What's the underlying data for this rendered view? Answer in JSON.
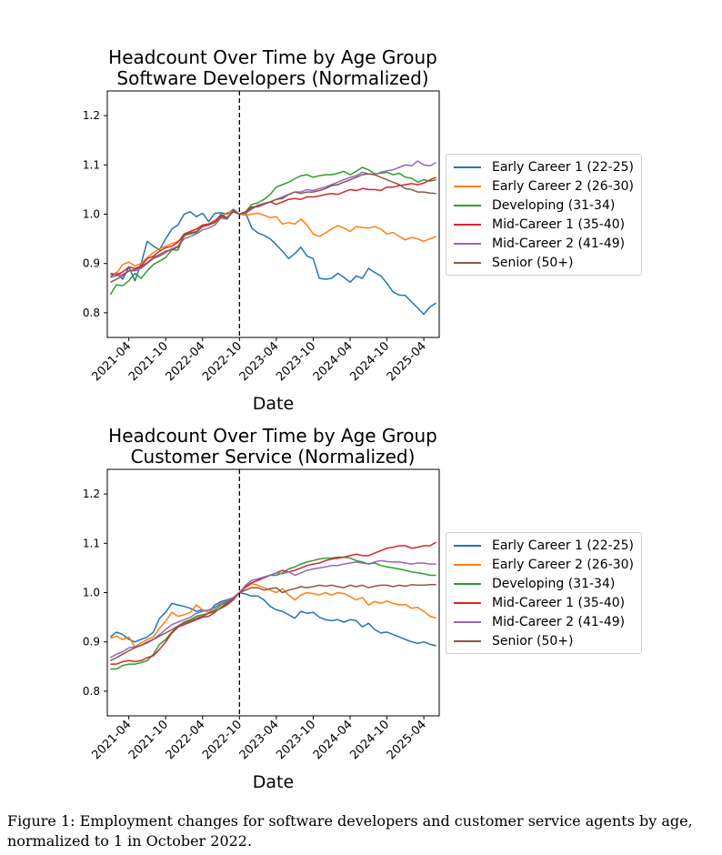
{
  "chart_data": [
    {
      "type": "line",
      "title_lines": [
        "Headcount Over Time by Age Group",
        "Software Developers (Normalized)"
      ],
      "xlabel": "Date",
      "ylabel": "",
      "ylim": [
        0.75,
        1.25
      ],
      "yticks": [
        0.8,
        0.9,
        1.0,
        1.1,
        1.2
      ],
      "xlim": [
        "2021-01",
        "2025-06"
      ],
      "xticks": [
        "2021-04",
        "2021-10",
        "2022-04",
        "2022-10",
        "2023-04",
        "2023-10",
        "2024-04",
        "2024-10",
        "2025-04"
      ],
      "reference_line": "2022-10",
      "grid": false,
      "legend_position": "right, outside",
      "x": [
        "2021-01",
        "2021-02",
        "2021-03",
        "2021-04",
        "2021-05",
        "2021-06",
        "2021-07",
        "2021-08",
        "2021-09",
        "2021-10",
        "2021-11",
        "2021-12",
        "2022-01",
        "2022-02",
        "2022-03",
        "2022-04",
        "2022-05",
        "2022-06",
        "2022-07",
        "2022-08",
        "2022-09",
        "2022-10",
        "2022-11",
        "2022-12",
        "2023-01",
        "2023-02",
        "2023-03",
        "2023-04",
        "2023-05",
        "2023-06",
        "2023-07",
        "2023-08",
        "2023-09",
        "2023-10",
        "2023-11",
        "2023-12",
        "2024-01",
        "2024-02",
        "2024-03",
        "2024-04",
        "2024-05",
        "2024-06",
        "2024-07",
        "2024-08",
        "2024-09",
        "2024-10",
        "2024-11",
        "2024-12",
        "2025-01",
        "2025-02",
        "2025-03",
        "2025-04",
        "2025-05",
        "2025-06"
      ],
      "series": [
        {
          "name": "Early Career 1 (22-25)",
          "color": "#1f77b4",
          "values": [
            0.873,
            0.882,
            0.868,
            0.893,
            0.865,
            0.9,
            0.945,
            0.935,
            0.928,
            0.95,
            0.97,
            0.978,
            1.0,
            1.005,
            0.995,
            1.002,
            0.985,
            1.002,
            1.003,
            1.0,
            1.01,
            1.0,
            1.003,
            0.972,
            0.962,
            0.957,
            0.95,
            0.938,
            0.925,
            0.91,
            0.92,
            0.933,
            0.915,
            0.91,
            0.87,
            0.868,
            0.87,
            0.88,
            0.872,
            0.862,
            0.875,
            0.87,
            0.89,
            0.882,
            0.875,
            0.86,
            0.842,
            0.836,
            0.835,
            0.822,
            0.81,
            0.797,
            0.812,
            0.82
          ]
        },
        {
          "name": "Early Career 2 (26-30)",
          "color": "#ff7f0e",
          "values": [
            0.878,
            0.88,
            0.898,
            0.903,
            0.895,
            0.9,
            0.912,
            0.922,
            0.93,
            0.935,
            0.94,
            0.945,
            0.955,
            0.965,
            0.97,
            0.975,
            0.98,
            0.988,
            0.995,
            1.003,
            1.007,
            1.0,
            0.998,
            1.0,
            1.002,
            0.998,
            0.993,
            0.995,
            0.98,
            0.983,
            0.98,
            0.99,
            0.978,
            0.96,
            0.955,
            0.962,
            0.97,
            0.977,
            0.972,
            0.965,
            0.975,
            0.973,
            0.972,
            0.975,
            0.97,
            0.96,
            0.963,
            0.955,
            0.948,
            0.953,
            0.95,
            0.945,
            0.95,
            0.955
          ]
        },
        {
          "name": "Developing (31-34)",
          "color": "#2ca02c",
          "values": [
            0.837,
            0.857,
            0.855,
            0.865,
            0.88,
            0.87,
            0.885,
            0.898,
            0.905,
            0.912,
            0.928,
            0.927,
            0.957,
            0.96,
            0.963,
            0.975,
            0.978,
            0.985,
            1.0,
            0.993,
            1.008,
            1.0,
            1.005,
            1.02,
            1.023,
            1.03,
            1.04,
            1.055,
            1.06,
            1.065,
            1.072,
            1.078,
            1.08,
            1.075,
            1.078,
            1.08,
            1.08,
            1.083,
            1.087,
            1.08,
            1.087,
            1.095,
            1.09,
            1.082,
            1.083,
            1.085,
            1.08,
            1.083,
            1.075,
            1.073,
            1.065,
            1.07,
            1.067,
            1.07
          ]
        },
        {
          "name": "Mid-Career 1 (35-40)",
          "color": "#d62728",
          "values": [
            0.88,
            0.877,
            0.883,
            0.893,
            0.89,
            0.895,
            0.91,
            0.915,
            0.925,
            0.932,
            0.935,
            0.943,
            0.96,
            0.965,
            0.97,
            0.978,
            0.98,
            0.985,
            0.998,
            0.992,
            1.005,
            1.0,
            1.005,
            1.015,
            1.015,
            1.02,
            1.025,
            1.02,
            1.025,
            1.03,
            1.032,
            1.03,
            1.035,
            1.035,
            1.037,
            1.04,
            1.042,
            1.04,
            1.045,
            1.05,
            1.048,
            1.052,
            1.05,
            1.05,
            1.048,
            1.055,
            1.055,
            1.058,
            1.06,
            1.062,
            1.06,
            1.063,
            1.07,
            1.075
          ]
        },
        {
          "name": "Mid-Career 2 (41-49)",
          "color": "#9467bd",
          "values": [
            0.872,
            0.875,
            0.878,
            0.885,
            0.885,
            0.89,
            0.9,
            0.91,
            0.915,
            0.922,
            0.93,
            0.935,
            0.95,
            0.955,
            0.96,
            0.968,
            0.972,
            0.978,
            0.992,
            0.99,
            1.008,
            1.0,
            1.003,
            1.01,
            1.018,
            1.02,
            1.025,
            1.03,
            1.035,
            1.04,
            1.045,
            1.045,
            1.05,
            1.048,
            1.052,
            1.055,
            1.06,
            1.065,
            1.07,
            1.075,
            1.078,
            1.085,
            1.082,
            1.08,
            1.085,
            1.088,
            1.09,
            1.095,
            1.1,
            1.098,
            1.108,
            1.1,
            1.098,
            1.105
          ]
        },
        {
          "name": "Senior (50+)",
          "color": "#8c564b",
          "values": [
            0.862,
            0.868,
            0.875,
            0.885,
            0.888,
            0.893,
            0.902,
            0.912,
            0.918,
            0.925,
            0.928,
            0.933,
            0.958,
            0.962,
            0.965,
            0.975,
            0.978,
            0.983,
            0.995,
            0.992,
            1.008,
            1.0,
            1.002,
            1.012,
            1.018,
            1.022,
            1.025,
            1.03,
            1.032,
            1.04,
            1.045,
            1.042,
            1.045,
            1.045,
            1.048,
            1.052,
            1.058,
            1.06,
            1.065,
            1.07,
            1.075,
            1.08,
            1.082,
            1.08,
            1.075,
            1.07,
            1.065,
            1.06,
            1.052,
            1.05,
            1.045,
            1.045,
            1.043,
            1.042
          ]
        }
      ]
    },
    {
      "type": "line",
      "title_lines": [
        "Headcount Over Time by Age Group",
        "Customer Service (Normalized)"
      ],
      "xlabel": "Date",
      "ylabel": "",
      "ylim": [
        0.75,
        1.25
      ],
      "yticks": [
        0.8,
        0.9,
        1.0,
        1.1,
        1.2
      ],
      "xlim": [
        "2021-01",
        "2025-06"
      ],
      "xticks": [
        "2021-04",
        "2021-10",
        "2022-04",
        "2022-10",
        "2023-04",
        "2023-10",
        "2024-04",
        "2024-10",
        "2025-04"
      ],
      "reference_line": "2022-10",
      "grid": false,
      "legend_position": "right, outside",
      "x": [
        "2021-01",
        "2021-02",
        "2021-03",
        "2021-04",
        "2021-05",
        "2021-06",
        "2021-07",
        "2021-08",
        "2021-09",
        "2021-10",
        "2021-11",
        "2021-12",
        "2022-01",
        "2022-02",
        "2022-03",
        "2022-04",
        "2022-05",
        "2022-06",
        "2022-07",
        "2022-08",
        "2022-09",
        "2022-10",
        "2022-11",
        "2022-12",
        "2023-01",
        "2023-02",
        "2023-03",
        "2023-04",
        "2023-05",
        "2023-06",
        "2023-07",
        "2023-08",
        "2023-09",
        "2023-10",
        "2023-11",
        "2023-12",
        "2024-01",
        "2024-02",
        "2024-03",
        "2024-04",
        "2024-05",
        "2024-06",
        "2024-07",
        "2024-08",
        "2024-09",
        "2024-10",
        "2024-11",
        "2024-12",
        "2025-01",
        "2025-02",
        "2025-03",
        "2025-04",
        "2025-05",
        "2025-06"
      ],
      "series": [
        {
          "name": "Early Career 1 (22-25)",
          "color": "#1f77b4",
          "values": [
            0.91,
            0.92,
            0.915,
            0.905,
            0.9,
            0.905,
            0.91,
            0.92,
            0.948,
            0.96,
            0.978,
            0.975,
            0.972,
            0.968,
            0.962,
            0.965,
            0.96,
            0.975,
            0.982,
            0.985,
            0.99,
            1.0,
            0.997,
            0.993,
            0.993,
            0.985,
            0.972,
            0.965,
            0.962,
            0.955,
            0.948,
            0.962,
            0.958,
            0.96,
            0.95,
            0.945,
            0.943,
            0.945,
            0.94,
            0.945,
            0.943,
            0.93,
            0.938,
            0.925,
            0.918,
            0.92,
            0.915,
            0.91,
            0.905,
            0.9,
            0.897,
            0.9,
            0.895,
            0.892
          ]
        },
        {
          "name": "Early Career 2 (26-30)",
          "color": "#ff7f0e",
          "values": [
            0.907,
            0.912,
            0.905,
            0.91,
            0.89,
            0.898,
            0.905,
            0.91,
            0.928,
            0.942,
            0.96,
            0.952,
            0.955,
            0.96,
            0.975,
            0.965,
            0.96,
            0.97,
            0.978,
            0.982,
            0.99,
            1.0,
            1.01,
            1.018,
            1.015,
            1.01,
            1.005,
            1.0,
            1.008,
            0.995,
            0.985,
            0.995,
            1.0,
            0.998,
            0.995,
            1.0,
            0.995,
            1.0,
            0.998,
            0.992,
            0.985,
            0.99,
            0.975,
            0.982,
            0.978,
            0.983,
            0.978,
            0.975,
            0.976,
            0.968,
            0.97,
            0.962,
            0.952,
            0.948
          ]
        },
        {
          "name": "Developing (31-34)",
          "color": "#2ca02c",
          "values": [
            0.845,
            0.845,
            0.852,
            0.855,
            0.855,
            0.858,
            0.862,
            0.875,
            0.895,
            0.905,
            0.92,
            0.932,
            0.94,
            0.945,
            0.952,
            0.955,
            0.958,
            0.965,
            0.975,
            0.98,
            0.99,
            1.0,
            1.012,
            1.02,
            1.025,
            1.03,
            1.035,
            1.035,
            1.04,
            1.048,
            1.052,
            1.058,
            1.062,
            1.065,
            1.068,
            1.07,
            1.07,
            1.072,
            1.072,
            1.07,
            1.065,
            1.062,
            1.058,
            1.06,
            1.055,
            1.052,
            1.05,
            1.048,
            1.045,
            1.042,
            1.04,
            1.038,
            1.035,
            1.035
          ]
        },
        {
          "name": "Mid-Career 1 (35-40)",
          "color": "#d62728",
          "values": [
            0.855,
            0.855,
            0.86,
            0.862,
            0.86,
            0.862,
            0.868,
            0.872,
            0.885,
            0.9,
            0.918,
            0.93,
            0.935,
            0.94,
            0.945,
            0.95,
            0.952,
            0.96,
            0.97,
            0.978,
            0.988,
            1.0,
            1.012,
            1.02,
            1.025,
            1.03,
            1.035,
            1.04,
            1.045,
            1.042,
            1.045,
            1.05,
            1.055,
            1.058,
            1.06,
            1.065,
            1.068,
            1.07,
            1.072,
            1.075,
            1.078,
            1.075,
            1.075,
            1.08,
            1.085,
            1.09,
            1.092,
            1.095,
            1.095,
            1.09,
            1.092,
            1.095,
            1.095,
            1.102
          ]
        },
        {
          "name": "Mid-Career 2 (41-49)",
          "color": "#9467bd",
          "values": [
            0.868,
            0.875,
            0.88,
            0.888,
            0.89,
            0.893,
            0.9,
            0.905,
            0.915,
            0.925,
            0.935,
            0.94,
            0.945,
            0.95,
            0.958,
            0.962,
            0.965,
            0.97,
            0.978,
            0.983,
            0.99,
            1.0,
            1.015,
            1.025,
            1.028,
            1.032,
            1.035,
            1.04,
            1.038,
            1.042,
            1.035,
            1.04,
            1.045,
            1.048,
            1.05,
            1.052,
            1.055,
            1.055,
            1.058,
            1.06,
            1.062,
            1.06,
            1.058,
            1.062,
            1.065,
            1.063,
            1.062,
            1.062,
            1.06,
            1.058,
            1.06,
            1.06,
            1.058,
            1.058
          ]
        },
        {
          "name": "Senior (50+)",
          "color": "#8c564b",
          "values": [
            0.862,
            0.868,
            0.875,
            0.882,
            0.888,
            0.893,
            0.898,
            0.905,
            0.912,
            0.918,
            0.925,
            0.932,
            0.938,
            0.942,
            0.948,
            0.952,
            0.958,
            0.962,
            0.968,
            0.975,
            0.985,
            1.0,
            1.005,
            1.01,
            1.01,
            1.005,
            1.008,
            1.01,
            1.0,
            1.005,
            1.008,
            1.012,
            1.01,
            1.012,
            1.015,
            1.013,
            1.015,
            1.012,
            1.01,
            1.015,
            1.012,
            1.015,
            1.01,
            1.013,
            1.015,
            1.015,
            1.012,
            1.015,
            1.013,
            1.016,
            1.015,
            1.015,
            1.016,
            1.016
          ]
        }
      ]
    }
  ],
  "caption": "Figure 1: Employment changes for software developers and customer service agents by age, normalized to 1 in October 2022."
}
